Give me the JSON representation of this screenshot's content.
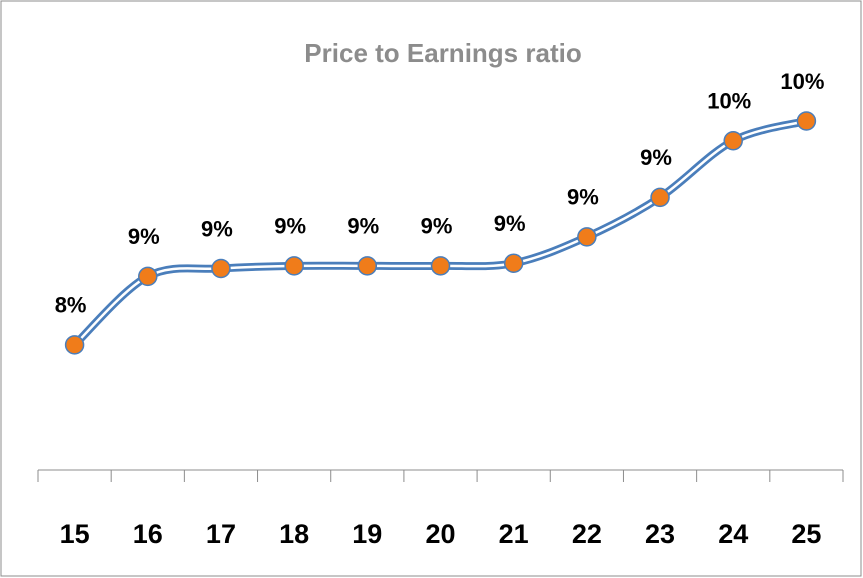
{
  "chart_data": {
    "type": "line",
    "title": "Price to Earnings ratio",
    "categories": [
      "15",
      "16",
      "17",
      "18",
      "19",
      "20",
      "21",
      "22",
      "23",
      "24",
      "25"
    ],
    "values": [
      8.2,
      8.72,
      8.78,
      8.8,
      8.8,
      8.8,
      8.82,
      9.02,
      9.32,
      9.75,
      9.9
    ],
    "value_labels": [
      "8%",
      "9%",
      "9%",
      "9%",
      "9%",
      "9%",
      "9%",
      "9%",
      "9%",
      "10%",
      "10%"
    ],
    "color": "#4a7ebb",
    "marker_color": "#f07c1a",
    "ylim": [
      7.25,
      10.5
    ],
    "smooth": true
  }
}
